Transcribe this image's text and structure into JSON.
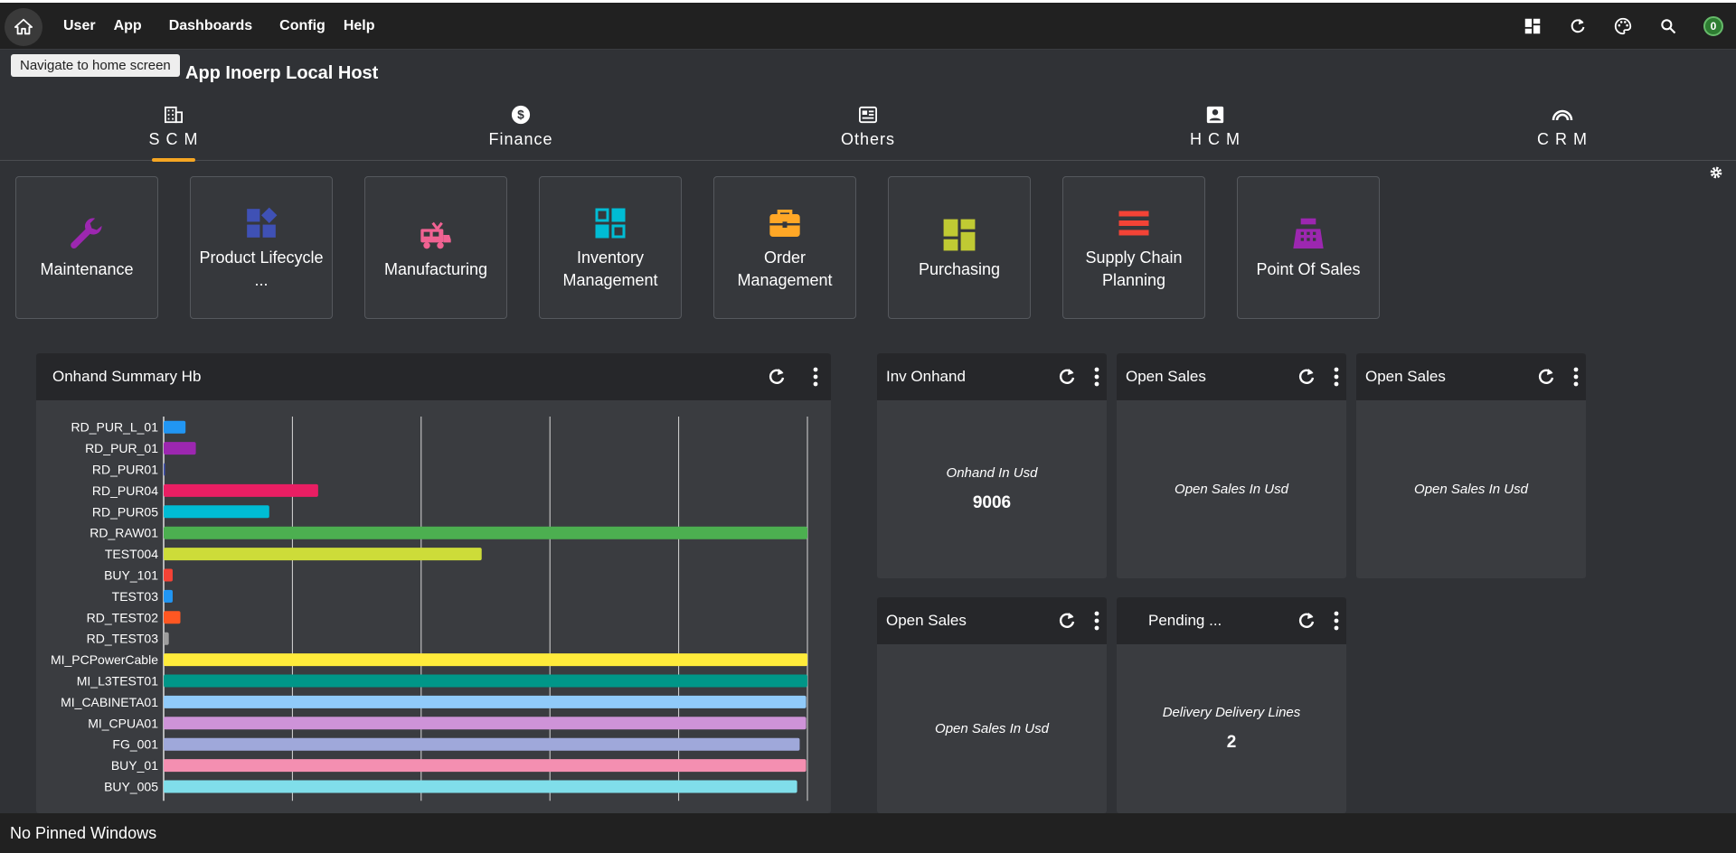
{
  "topbar": {
    "menu": [
      "User",
      "App",
      "Dashboards",
      "Config",
      "Help"
    ],
    "notification_count": "0"
  },
  "tooltip": "Navigate to home screen",
  "app_title": "App Inoerp Local Host",
  "tabs": [
    {
      "label": "S C M",
      "icon": "building-icon",
      "active": true
    },
    {
      "label": "Finance",
      "icon": "dollar-icon",
      "active": false
    },
    {
      "label": "Others",
      "icon": "newspaper-icon",
      "active": false
    },
    {
      "label": "H C M",
      "icon": "person-badge-icon",
      "active": false
    },
    {
      "label": "C R M",
      "icon": "signal-arc-icon",
      "active": false
    }
  ],
  "tiles": [
    {
      "label": "Maintenance",
      "icon": "wrench-icon",
      "color": "#9c27b0"
    },
    {
      "label": "Product Lifecycle ...",
      "icon": "shapes-icon",
      "color": "#3f51b5"
    },
    {
      "label": "Manufacturing",
      "icon": "rv-icon",
      "color": "#f06292"
    },
    {
      "label": "Inventory Management",
      "icon": "grid-icon",
      "color": "#00bcd4"
    },
    {
      "label": "Order Management",
      "icon": "briefcase-icon",
      "color": "#ffa726"
    },
    {
      "label": "Purchasing",
      "icon": "dashboard-icon",
      "color": "#c0ca33"
    },
    {
      "label": "Supply Chain Planning",
      "icon": "bars-icon",
      "color": "#f44336"
    },
    {
      "label": "Point Of Sales",
      "icon": "register-icon",
      "color": "#9c27b0"
    }
  ],
  "widgets": {
    "onhand": {
      "title": "Onhand Summary Hb"
    },
    "inv_onhand": {
      "title": "Inv Onhand",
      "label": "Onhand In Usd",
      "value": "9006"
    },
    "open_sales_1": {
      "title": "Open Sales",
      "label": "Open Sales In Usd"
    },
    "open_sales_2": {
      "title": "Open Sales",
      "label": "Open Sales In Usd"
    },
    "open_sales_3": {
      "title": "Open Sales",
      "label": "Open Sales In Usd"
    },
    "pending": {
      "title": "Pending ...",
      "label": "Delivery Delivery Lines",
      "value": "2"
    }
  },
  "chart_data": {
    "type": "bar",
    "orientation": "horizontal",
    "title": "Onhand Summary Hb",
    "categories": [
      "RD_PUR_L_01",
      "RD_PUR_01",
      "RD_PUR01",
      "RD_PUR04",
      "RD_PUR05",
      "RD_RAW01",
      "TEST004",
      "BUY_101",
      "TEST03",
      "RD_TEST02",
      "RD_TEST03",
      "MI_PCPowerCable",
      "MI_L3TEST01",
      "MI_CABINETA01",
      "MI_CPUA01",
      "FG_001",
      "BUY_01",
      "BUY_005"
    ],
    "values": [
      17,
      25,
      1,
      120,
      82,
      500,
      247,
      7,
      7,
      13,
      4,
      500,
      500,
      499,
      499,
      494,
      499,
      492
    ],
    "colors": [
      "#2196f3",
      "#9c27b0",
      "#3f51b5",
      "#e91e63",
      "#00bcd4",
      "#4caf50",
      "#cddc39",
      "#f44336",
      "#2196f3",
      "#ff5722",
      "#9e9e9e",
      "#ffeb3b",
      "#009688",
      "#90caf9",
      "#ce93d8",
      "#9fa8da",
      "#f48fb1",
      "#80deea"
    ],
    "xlim": [
      0,
      500
    ],
    "grid": true
  },
  "footer": "No Pinned Windows"
}
